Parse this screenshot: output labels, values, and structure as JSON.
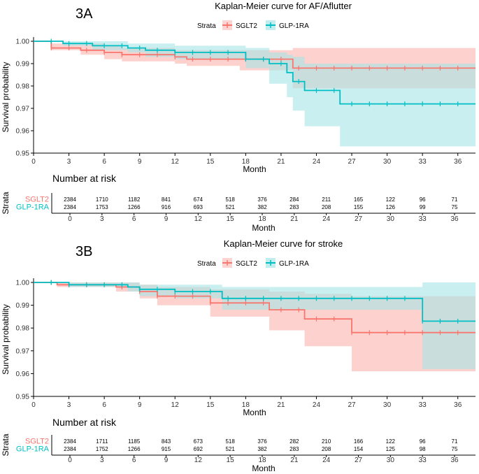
{
  "colors": {
    "sglt2": "#F8766D",
    "glp1ra": "#00BFC4",
    "sglt2_band": "#FBC2BD",
    "glp1ra_band": "#A6E5E7"
  },
  "chart_data": [
    {
      "panel_label": "3A",
      "title": "Kaplan-Meier curve for AF/Aflutter",
      "type": "line",
      "step": true,
      "legend": {
        "title": "Strata",
        "position": "top",
        "entries": [
          "SGLT2",
          "GLP-1RA"
        ]
      },
      "xlabel": "Month",
      "ylabel": "Survival probability",
      "xlim": [
        0,
        37.5
      ],
      "ylim": [
        0.95,
        1.0
      ],
      "xticks": [
        "0",
        "3",
        "6",
        "9",
        "12",
        "15",
        "18",
        "21",
        "24",
        "27",
        "30",
        "33",
        "36"
      ],
      "yticks": [
        "0.95",
        "0.96",
        "0.97",
        "0.98",
        "0.99",
        "1.00"
      ],
      "series": [
        {
          "name": "SGLT2",
          "x": [
            0,
            1.5,
            4,
            6,
            7.5,
            12,
            13,
            17.5,
            22
          ],
          "y": [
            1.0,
            0.997,
            0.996,
            0.995,
            0.994,
            0.993,
            0.992,
            0.992,
            0.988
          ],
          "ci_lower": [
            1.0,
            0.996,
            0.994,
            0.992,
            0.991,
            0.99,
            0.989,
            0.987,
            0.979
          ],
          "ci_upper": [
            1.0,
            0.999,
            0.999,
            0.998,
            0.997,
            0.996,
            0.996,
            0.996,
            0.997
          ]
        },
        {
          "name": "GLP-1RA",
          "x": [
            0,
            2.5,
            5,
            8,
            9.5,
            12,
            18,
            20,
            21.5,
            22,
            23,
            26
          ],
          "y": [
            1.0,
            0.999,
            0.998,
            0.997,
            0.996,
            0.995,
            0.992,
            0.99,
            0.986,
            0.982,
            0.978,
            0.972
          ],
          "ci_lower": [
            1.0,
            0.998,
            0.996,
            0.995,
            0.993,
            0.992,
            0.988,
            0.981,
            0.975,
            0.969,
            0.962,
            0.953
          ],
          "ci_upper": [
            1.0,
            1.0,
            1.0,
            0.999,
            0.999,
            0.998,
            0.997,
            0.995,
            0.994,
            0.993,
            0.99,
            0.99
          ]
        }
      ],
      "risk_table": {
        "title": "Number at risk",
        "ylabel": "Strata",
        "xlabel": "Month",
        "rows": [
          {
            "name": "SGLT2",
            "values": [
              "2384",
              "1710",
              "1182",
              "841",
              "674",
              "518",
              "376",
              "284",
              "211",
              "165",
              "122",
              "96",
              "71"
            ]
          },
          {
            "name": "GLP-1RA",
            "values": [
              "2384",
              "1753",
              "1266",
              "916",
              "693",
              "521",
              "382",
              "283",
              "208",
              "155",
              "126",
              "99",
              "75"
            ]
          }
        ]
      }
    },
    {
      "panel_label": "3B",
      "title": "Kaplan-Meier curve for stroke",
      "type": "line",
      "step": true,
      "legend": {
        "title": "Strata",
        "position": "top",
        "entries": [
          "SGLT2",
          "GLP-1RA"
        ]
      },
      "xlabel": "Month",
      "ylabel": "Survival probability",
      "xlim": [
        0,
        37.5
      ],
      "ylim": [
        0.95,
        1.0
      ],
      "xticks": [
        "0",
        "3",
        "6",
        "9",
        "12",
        "15",
        "18",
        "21",
        "24",
        "27",
        "30",
        "33",
        "36"
      ],
      "yticks": [
        "0.95",
        "0.96",
        "0.97",
        "0.98",
        "0.99",
        "1.00"
      ],
      "series": [
        {
          "name": "SGLT2",
          "x": [
            0,
            2,
            7,
            9,
            10.5,
            15,
            20,
            23,
            27
          ],
          "y": [
            1.0,
            0.999,
            0.998,
            0.996,
            0.994,
            0.991,
            0.988,
            0.984,
            0.978
          ],
          "ci_lower": [
            1.0,
            0.998,
            0.996,
            0.993,
            0.99,
            0.985,
            0.979,
            0.972,
            0.961
          ],
          "ci_upper": [
            1.0,
            1.0,
            1.0,
            0.999,
            0.998,
            0.997,
            0.996,
            0.995,
            0.994
          ]
        },
        {
          "name": "GLP-1RA",
          "x": [
            0,
            3,
            8,
            9,
            12,
            16,
            33
          ],
          "y": [
            1.0,
            0.999,
            0.998,
            0.997,
            0.996,
            0.993,
            0.983
          ],
          "ci_lower": [
            1.0,
            0.998,
            0.996,
            0.994,
            0.993,
            0.988,
            0.962
          ],
          "ci_upper": [
            1.0,
            1.0,
            1.0,
            0.999,
            0.999,
            0.998,
            1.0
          ]
        }
      ],
      "risk_table": {
        "title": "Number at risk",
        "ylabel": "Strata",
        "xlabel": "Month",
        "rows": [
          {
            "name": "SGLT2",
            "values": [
              "2384",
              "1711",
              "1185",
              "843",
              "673",
              "518",
              "376",
              "282",
              "210",
              "166",
              "122",
              "96",
              "71"
            ]
          },
          {
            "name": "GLP-1RA",
            "values": [
              "2384",
              "1752",
              "1266",
              "915",
              "692",
              "521",
              "382",
              "283",
              "208",
              "154",
              "125",
              "98",
              "75"
            ]
          }
        ]
      }
    }
  ]
}
